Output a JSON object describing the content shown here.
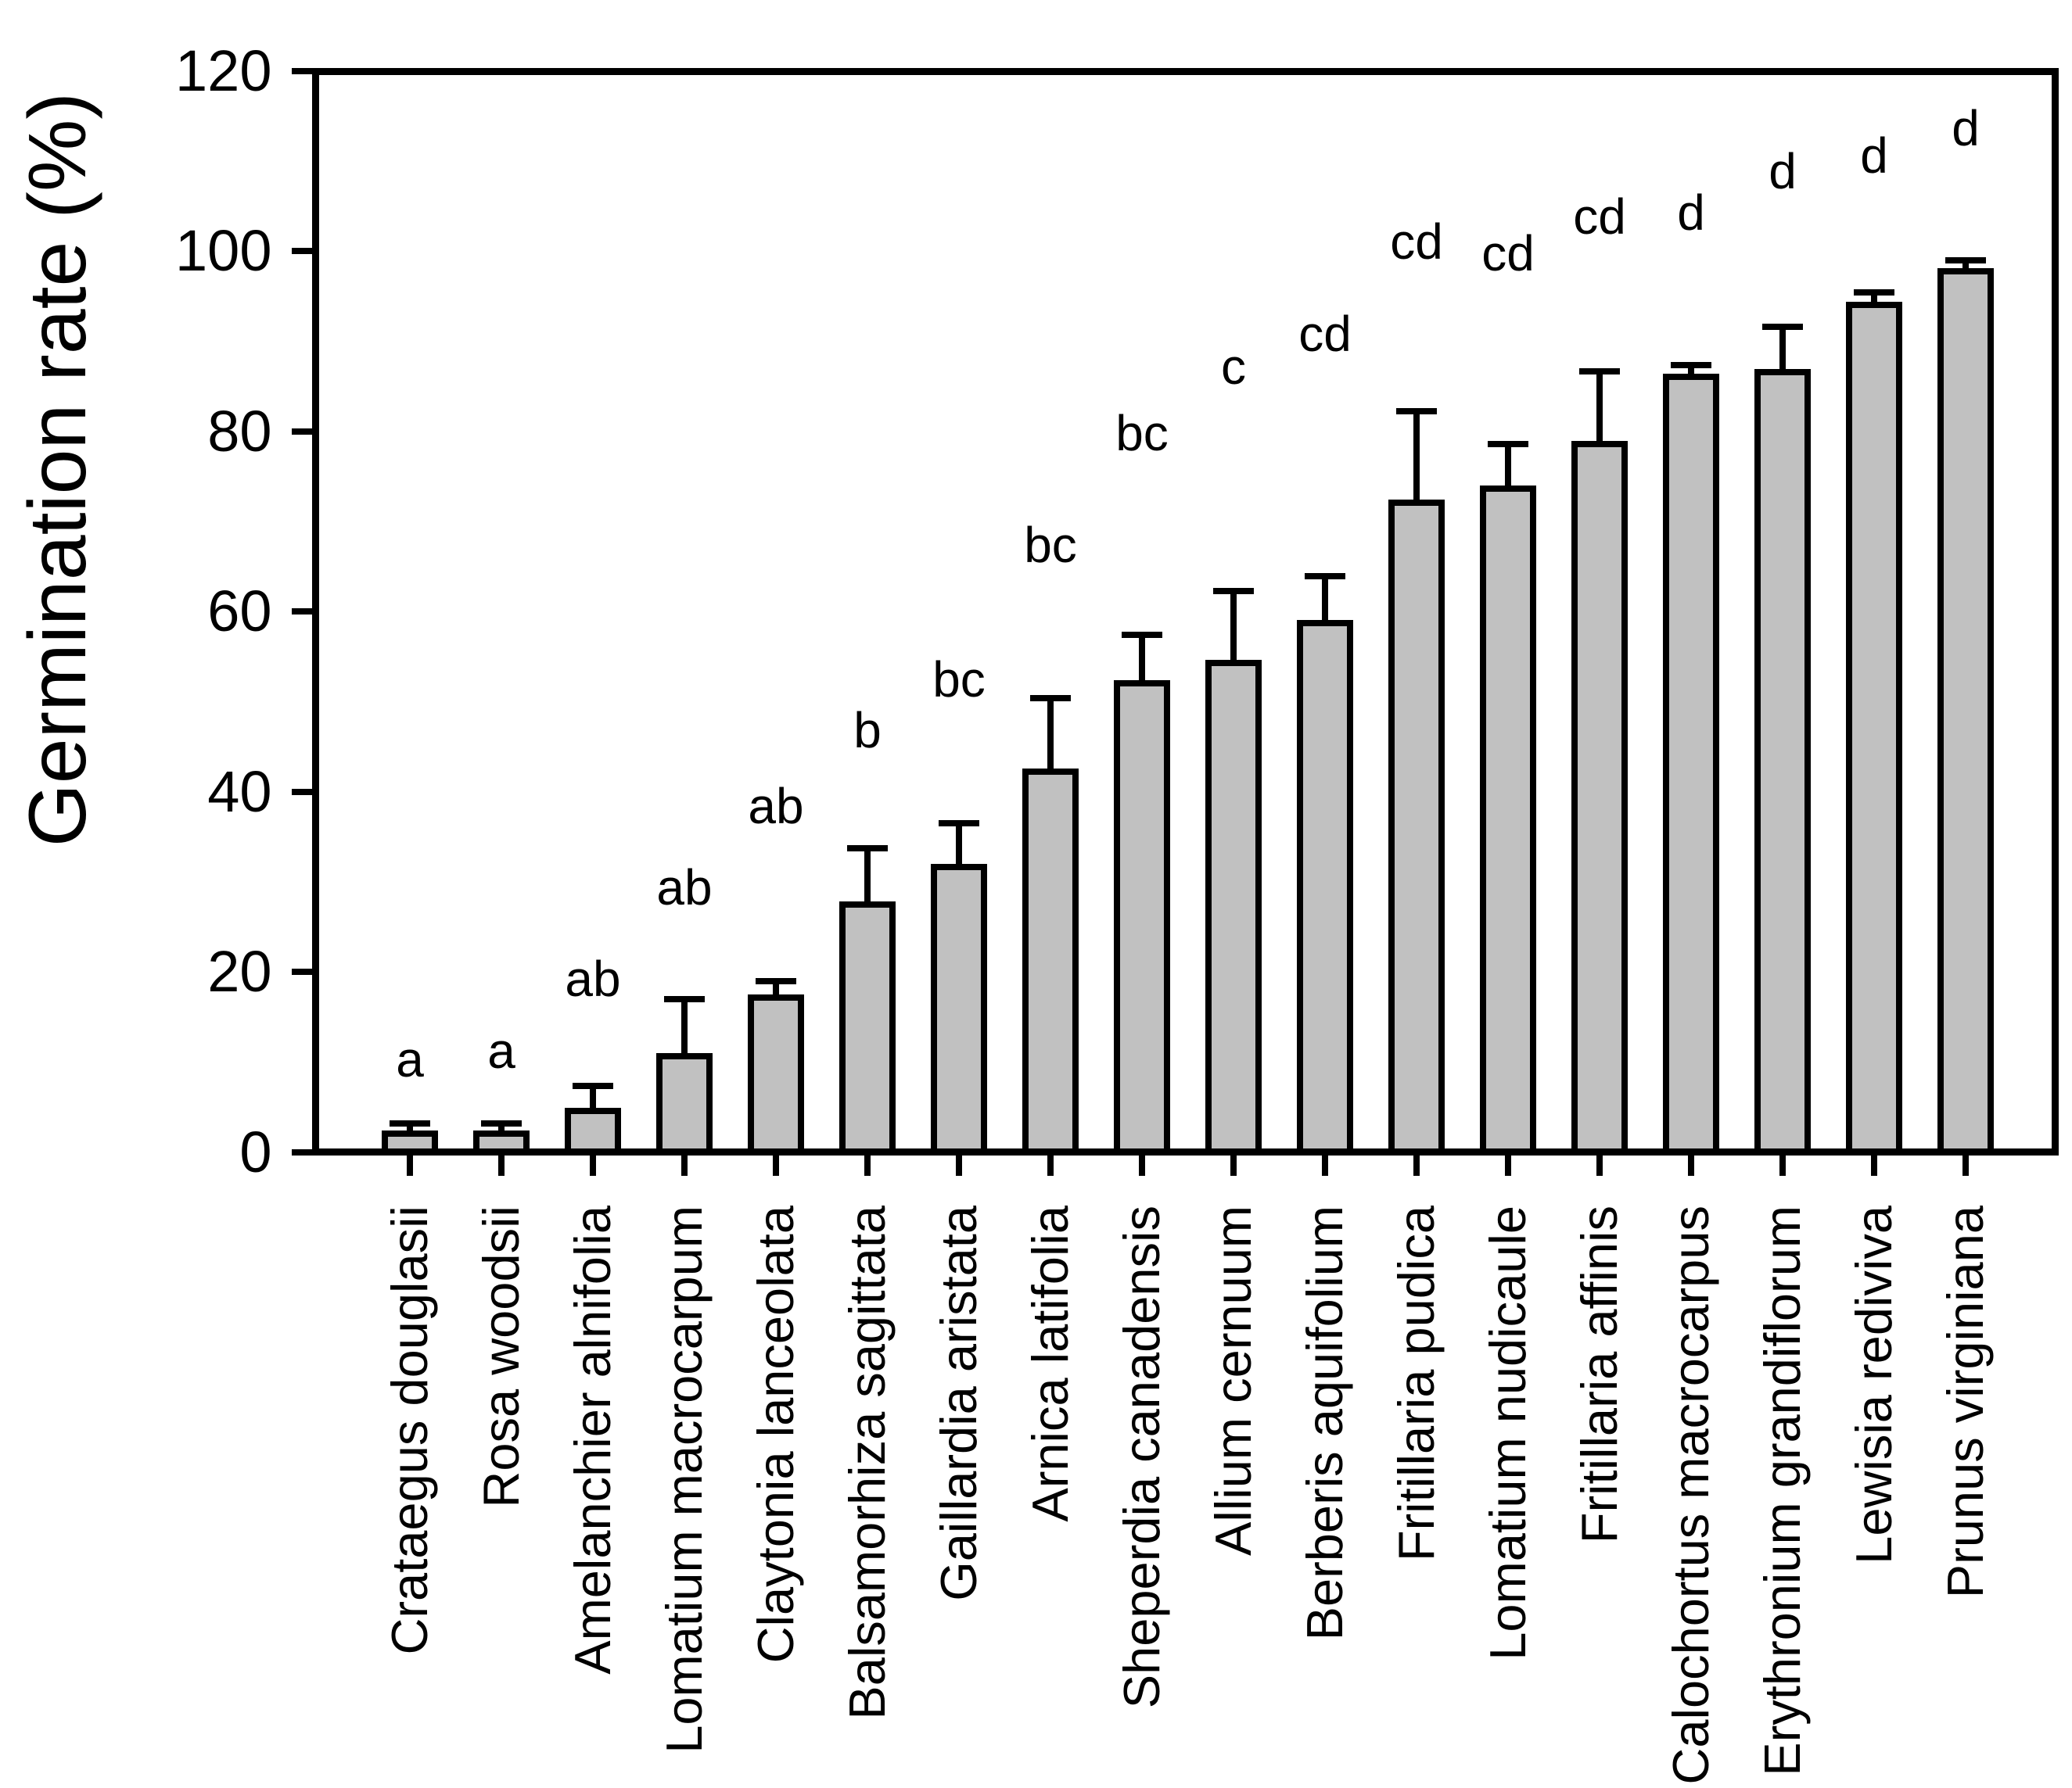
{
  "chart_data": {
    "type": "bar",
    "title": "",
    "xlabel": "",
    "ylabel": "Germination rate (%)",
    "ylim": [
      0,
      120
    ],
    "yticks": [
      0,
      20,
      40,
      60,
      80,
      100,
      120
    ],
    "grid": false,
    "legend": "none",
    "bar_fill_color": "#c1c1c1",
    "bar_border_color": "#000000",
    "categories": [
      "Crataegus douglasii",
      "Rosa woodsii",
      "Amelanchier alnifolia",
      "Lomatium macrocarpum",
      "Claytonia lanceolata",
      "Balsamorhiza sagittata",
      "Gaillardia aristata",
      "Arnica latifolia",
      "Sheperdia canadensis",
      "Allium cernuum",
      "Berberis aquifolium",
      "Fritillaria pudica",
      "Lomatium nudicaule",
      "Fritillaria affinis",
      "Calochortus macrocarpus",
      "Erythronium grandiflorum",
      "Lewisia rediviva",
      "Prunus virginiana"
    ],
    "series": [
      {
        "name": "Germination rate (%)",
        "values": [
          2.4,
          2.4,
          4.9,
          11.0,
          17.5,
          27.8,
          32.0,
          42.6,
          52.4,
          54.6,
          59.1,
          72.4,
          74.0,
          78.9,
          86.4,
          86.9,
          94.4,
          98.1
        ]
      }
    ],
    "error_bar_tops": [
      3.2,
      3.2,
      7.3,
      17.0,
      19.0,
      33.7,
      36.5,
      50.4,
      57.4,
      62.3,
      63.9,
      82.2,
      78.6,
      86.7,
      87.4,
      91.6,
      95.4,
      99.0
    ],
    "significance_letters": [
      "a",
      "a",
      "ab",
      "ab",
      "ab",
      "b",
      "bc",
      "bc",
      "bc",
      "c",
      "cd",
      "cd",
      "cd",
      "cd",
      "d",
      "d",
      "d",
      "d"
    ]
  }
}
